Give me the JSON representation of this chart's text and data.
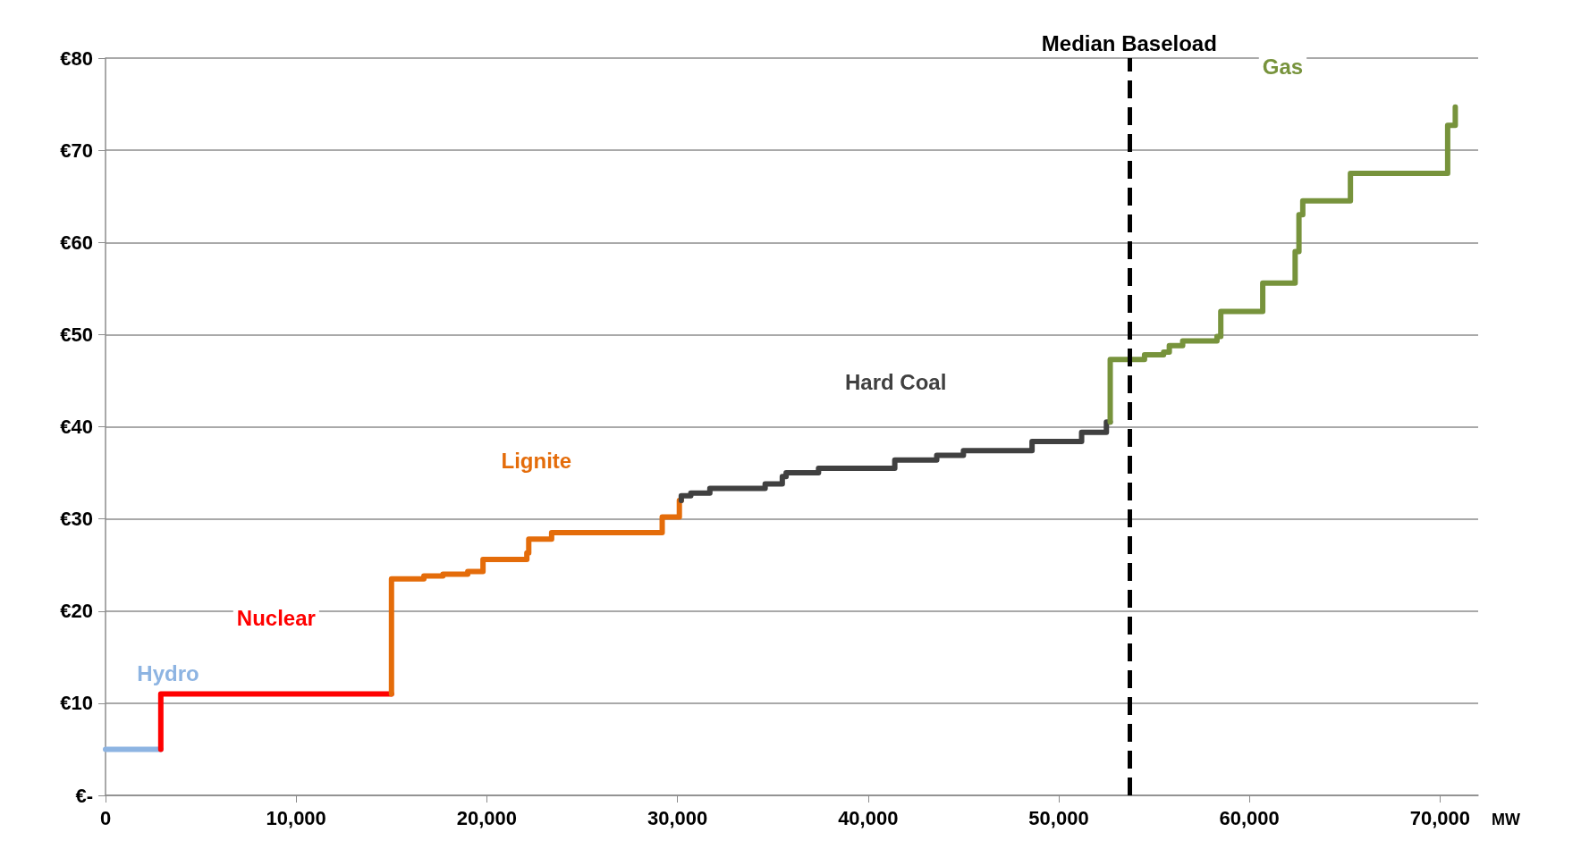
{
  "chart_data": {
    "type": "step",
    "xlabel": "MW",
    "xlim": [
      0,
      72000
    ],
    "ylim": [
      0,
      80
    ],
    "xticks": [
      0,
      {
        "value": 10000,
        "label": "10,000"
      },
      {
        "value": 20000,
        "label": "20,000"
      },
      {
        "value": 30000,
        "label": "30,000"
      },
      {
        "value": 40000,
        "label": "40,000"
      },
      {
        "value": 50000,
        "label": "50,000"
      },
      {
        "value": 60000,
        "label": "60,000"
      },
      {
        "value": 70000,
        "label": "70,000"
      }
    ],
    "yticks": [
      {
        "value": 0,
        "label": "€-"
      },
      {
        "value": 10,
        "label": "€10"
      },
      {
        "value": 20,
        "label": "€20"
      },
      {
        "value": 30,
        "label": "€30"
      },
      {
        "value": 40,
        "label": "€40"
      },
      {
        "value": 50,
        "label": "€50"
      },
      {
        "value": 60,
        "label": "€60"
      },
      {
        "value": 70,
        "label": "€70"
      },
      {
        "value": 80,
        "label": "€80"
      }
    ],
    "grid": "y",
    "legend": false,
    "marker": "none",
    "line_style": "solid",
    "series": [
      {
        "name": "Hydro",
        "color": "#8db4e2",
        "x": [
          0,
          2900
        ],
        "values": [
          5,
          5
        ]
      },
      {
        "name": "Nuclear",
        "color": "#ff0000",
        "x": [
          2900,
          2900,
          15000
        ],
        "values": [
          5,
          11,
          11
        ]
      },
      {
        "name": "Lignite",
        "color": "#e46c0a",
        "x": [
          15000,
          15000,
          16700,
          17700,
          19000,
          19800,
          22100,
          22200,
          23400,
          29200,
          30100,
          30200
        ],
        "values": [
          11,
          23.5,
          23.8,
          24.0,
          24.3,
          25.6,
          26.3,
          27.8,
          28.5,
          30.2,
          32.0,
          32.0
        ]
      },
      {
        "name": "Hard Coal",
        "color": "#404040",
        "x": [
          30200,
          30200,
          30700,
          31700,
          34600,
          35500,
          35700,
          37400,
          41400,
          43600,
          45000,
          48600,
          51200,
          52500,
          52700
        ],
        "values": [
          32.0,
          32.5,
          32.8,
          33.3,
          33.8,
          34.6,
          35.0,
          35.5,
          36.4,
          36.9,
          37.4,
          38.4,
          39.4,
          40.5,
          40.5
        ]
      },
      {
        "name": "Gas",
        "color": "#77933c",
        "x": [
          52700,
          52700,
          54500,
          55500,
          55800,
          56500,
          58300,
          58500,
          60700,
          62400,
          62600,
          62800,
          65300,
          70400,
          70800
        ],
        "values": [
          40.5,
          47.3,
          47.8,
          48.1,
          48.8,
          49.3,
          49.8,
          52.5,
          55.6,
          59.0,
          63.0,
          64.5,
          67.5,
          72.7,
          74.7
        ]
      }
    ],
    "ref_lines": [
      {
        "axis": "x",
        "value": 53700,
        "label": "Median Baseload",
        "color": "#000000",
        "line_style": "dashed"
      }
    ]
  }
}
